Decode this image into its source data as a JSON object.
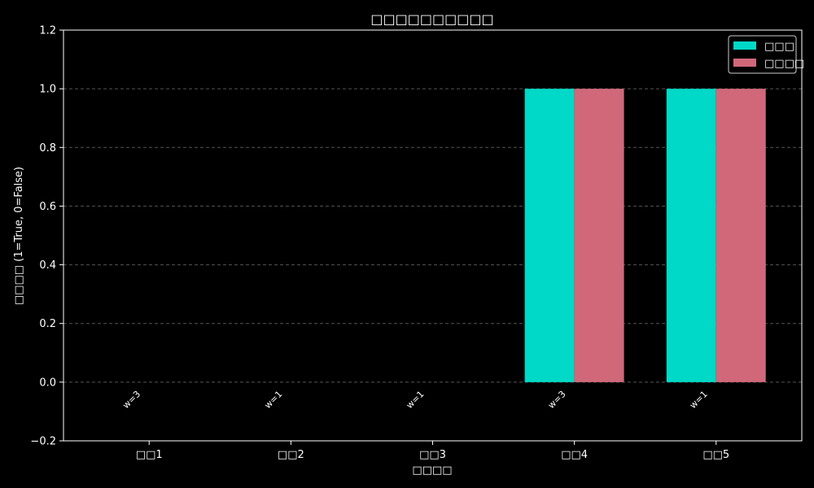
{
  "chart_data": {
    "type": "bar",
    "title": "□□□□□□□□□□",
    "xlabel": "□□□□",
    "ylabel": "□□□□ (1=True, 0=False)",
    "categories": [
      "□□1",
      "□□2",
      "□□3",
      "□□4",
      "□□5"
    ],
    "series": [
      {
        "name": "□□□",
        "color": "#00d9c7",
        "values": [
          0,
          0,
          0,
          1,
          1
        ]
      },
      {
        "name": "□□□□",
        "color": "#d0687a",
        "values": [
          0,
          0,
          0,
          1,
          1
        ]
      }
    ],
    "annotations": [
      "w=3",
      "w=1",
      "w=1",
      "w=3",
      "w=1"
    ],
    "ylim": [
      -0.2,
      1.2
    ],
    "yticks": [
      "−0.2",
      "0.0",
      "0.2",
      "0.4",
      "0.6",
      "0.8",
      "1.0",
      "1.2"
    ],
    "ytick_values": [
      -0.2,
      0.0,
      0.2,
      0.4,
      0.6,
      0.8,
      1.0,
      1.2
    ],
    "grid": "y-dashed",
    "legend": "top-right"
  }
}
